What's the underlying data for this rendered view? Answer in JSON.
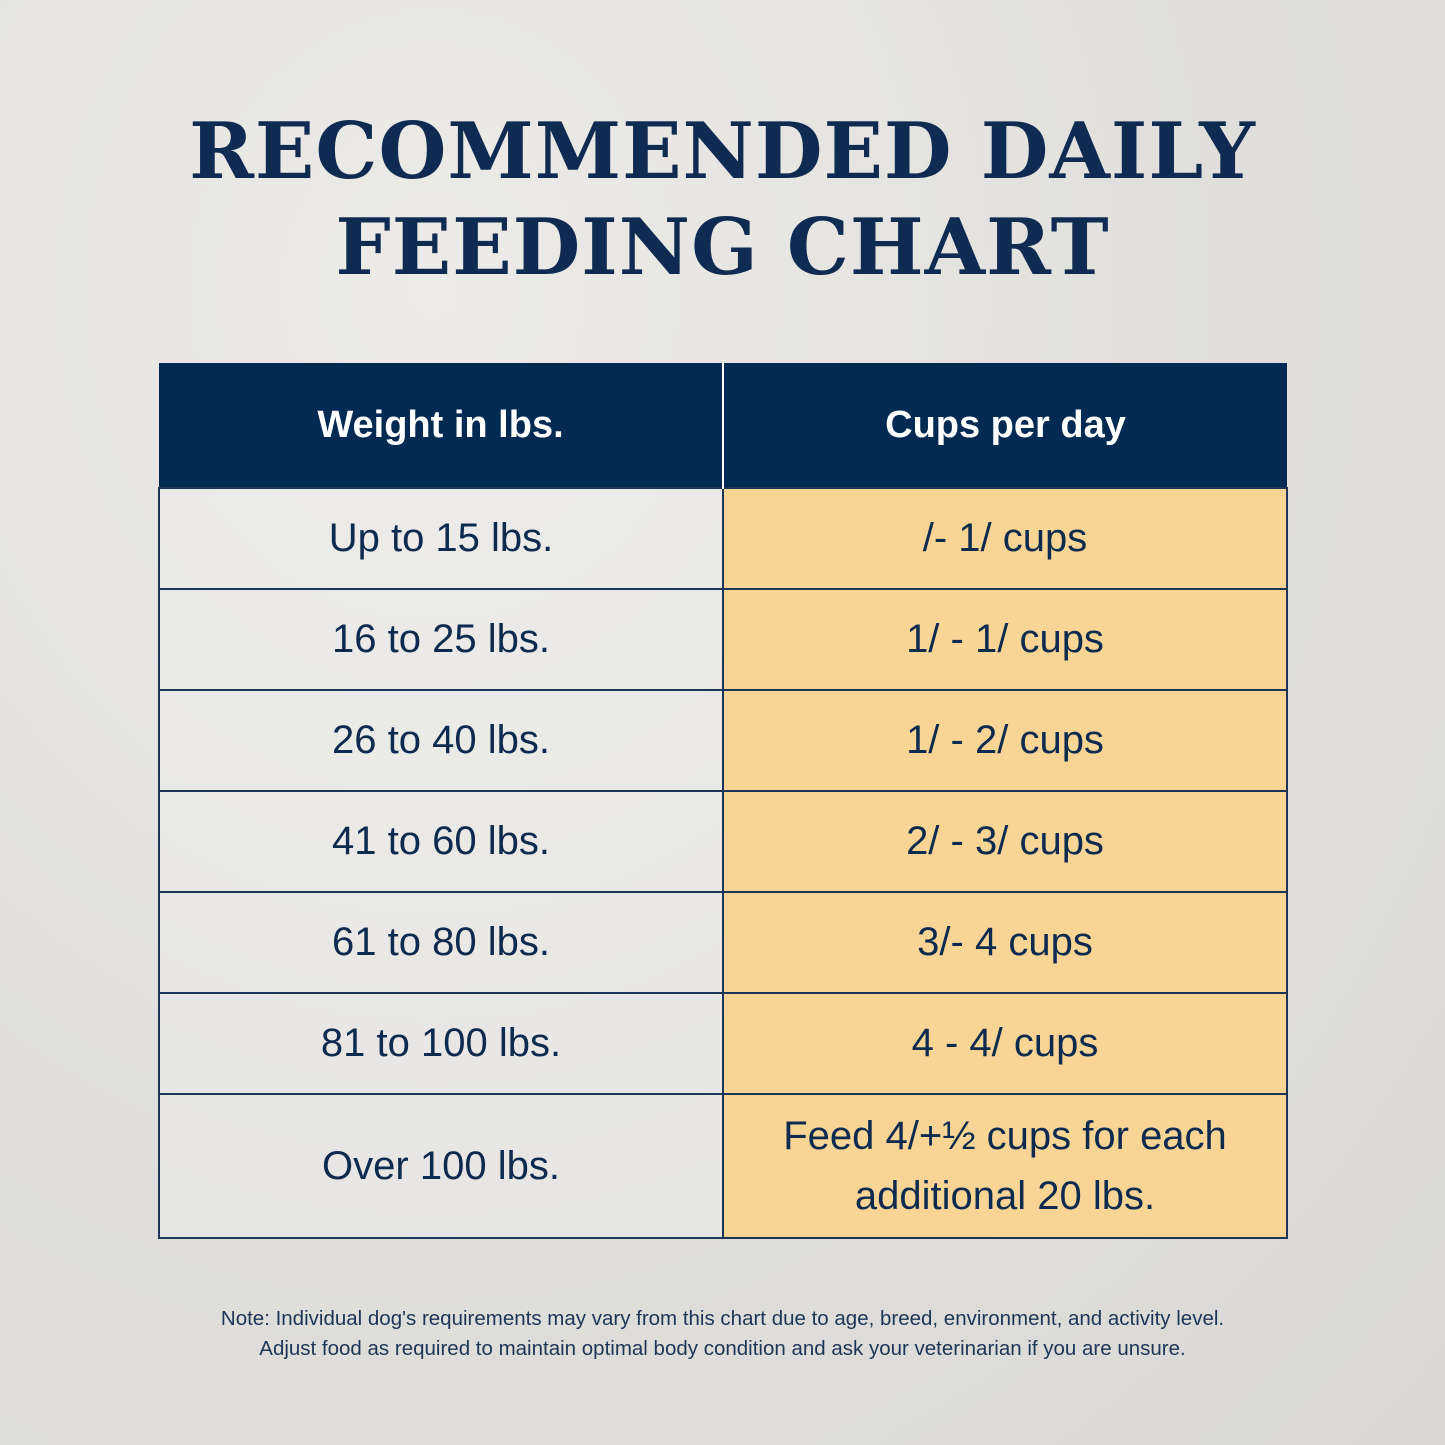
{
  "title": {
    "line1": "RECOMMENDED DAILY",
    "line2": "FEEDING CHART"
  },
  "table": {
    "headers": [
      "Weight in lbs.",
      "Cups per day"
    ],
    "rows": [
      {
        "weight": "Up to 15 lbs.",
        "cups": "/- 1/ cups"
      },
      {
        "weight": "16 to 25 lbs.",
        "cups": "1/ - 1/ cups"
      },
      {
        "weight": "26 to 40 lbs.",
        "cups": "1/ - 2/ cups"
      },
      {
        "weight": "41 to 60 lbs.",
        "cups": "2/ - 3/ cups"
      },
      {
        "weight": "61 to 80 lbs.",
        "cups": "3/- 4 cups"
      },
      {
        "weight": "81 to 100 lbs.",
        "cups": "4 - 4/ cups"
      },
      {
        "weight": "Over 100 lbs.",
        "cups": "Feed 4/+½ cups for each additional 20 lbs."
      }
    ]
  },
  "note": {
    "line1": "Note: Individual dog's requirements may vary from this chart due to age, breed, environment, and activity level.",
    "line2": "Adjust food as required to maintain optimal body condition and ask your veterinarian if you are unsure."
  },
  "colors": {
    "navy": "#032a53",
    "highlight": "#f8d595"
  }
}
